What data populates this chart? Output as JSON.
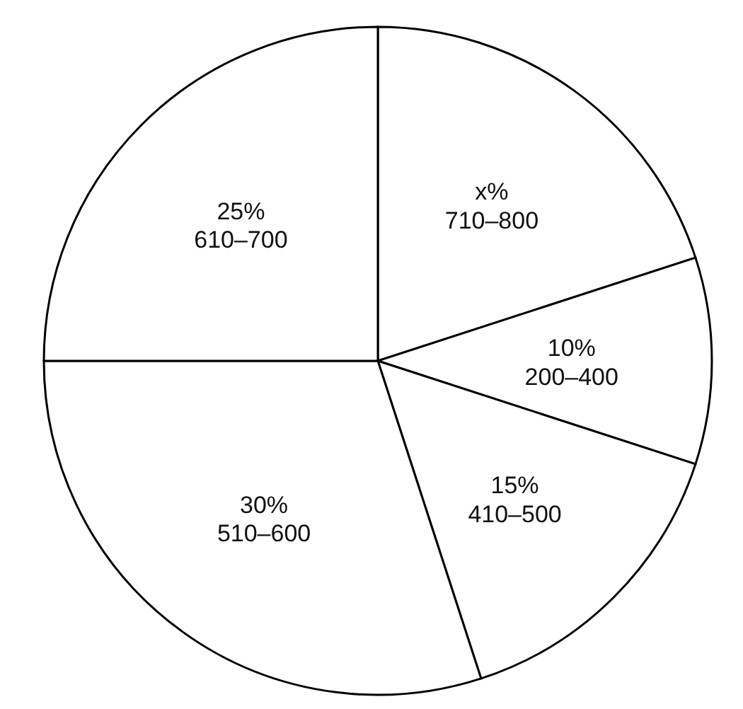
{
  "chart_data": {
    "type": "pie",
    "categories": [
      "710–800",
      "200–400",
      "410–500",
      "510–600",
      "610–700"
    ],
    "values": [
      20,
      10,
      15,
      30,
      25
    ],
    "value_labels": [
      "x%",
      "10%",
      "15%",
      "30%",
      "25%"
    ],
    "colors": [
      "#ffffff",
      "#ffffff",
      "#ffffff",
      "#ffffff",
      "#ffffff"
    ]
  }
}
